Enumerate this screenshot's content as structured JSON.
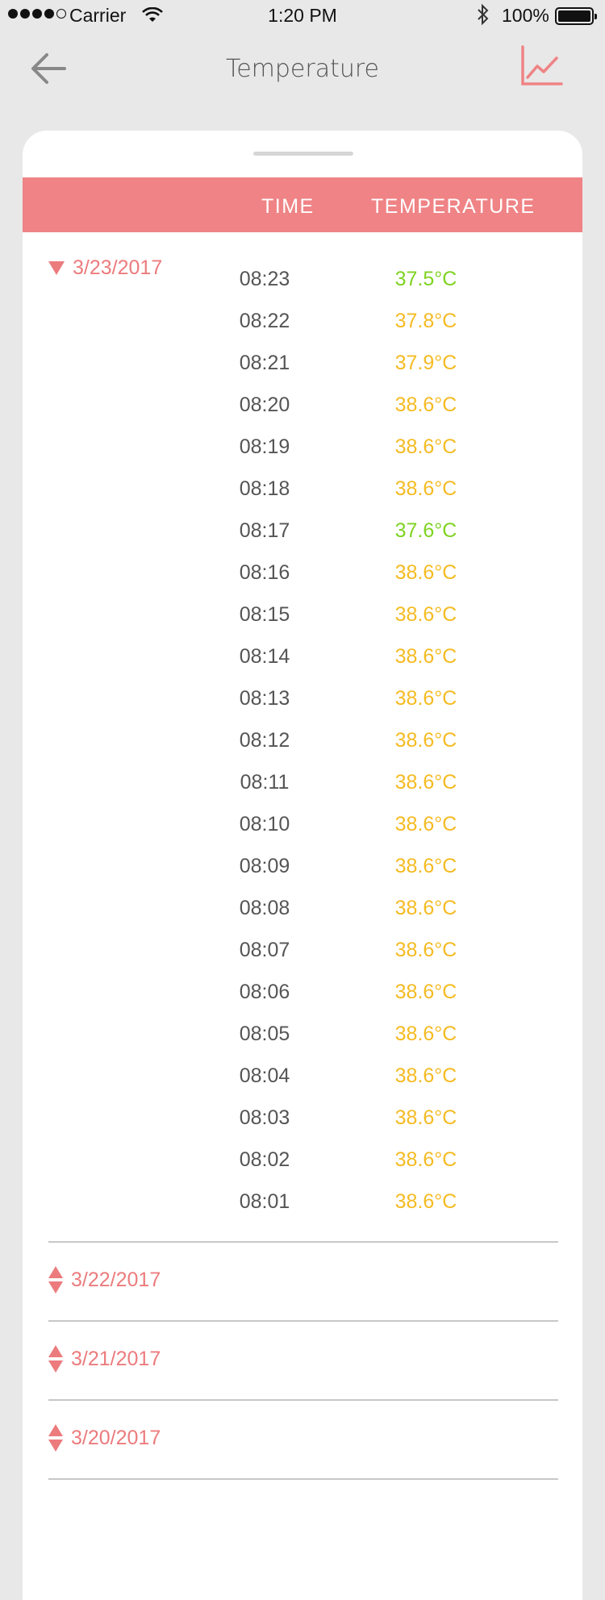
{
  "status_bar": {
    "carrier": "Carrier",
    "time": "1:20 PM",
    "battery": "100%"
  },
  "nav": {
    "title": "Temperature",
    "back_icon": "arrow-left-icon",
    "chart_icon": "line-chart-icon",
    "accent_color": "#ef8385"
  },
  "table": {
    "header_time": "TIME",
    "header_temperature": "TEMPERATURE"
  },
  "groups": [
    {
      "date": "3/23/2017",
      "expanded": true,
      "readings": [
        {
          "time": "08:23",
          "temp": "37.5°C",
          "status": "ok"
        },
        {
          "time": "08:22",
          "temp": "37.8°C",
          "status": "warn"
        },
        {
          "time": "08:21",
          "temp": "37.9°C",
          "status": "warn"
        },
        {
          "time": "08:20",
          "temp": "38.6°C",
          "status": "warn"
        },
        {
          "time": "08:19",
          "temp": "38.6°C",
          "status": "warn"
        },
        {
          "time": "08:18",
          "temp": "38.6°C",
          "status": "warn"
        },
        {
          "time": "08:17",
          "temp": "37.6°C",
          "status": "ok"
        },
        {
          "time": "08:16",
          "temp": "38.6°C",
          "status": "warn"
        },
        {
          "time": "08:15",
          "temp": "38.6°C",
          "status": "warn"
        },
        {
          "time": "08:14",
          "temp": "38.6°C",
          "status": "warn"
        },
        {
          "time": "08:13",
          "temp": "38.6°C",
          "status": "warn"
        },
        {
          "time": "08:12",
          "temp": "38.6°C",
          "status": "warn"
        },
        {
          "time": "08:11",
          "temp": "38.6°C",
          "status": "warn"
        },
        {
          "time": "08:10",
          "temp": "38.6°C",
          "status": "warn"
        },
        {
          "time": "08:09",
          "temp": "38.6°C",
          "status": "warn"
        },
        {
          "time": "08:08",
          "temp": "38.6°C",
          "status": "warn"
        },
        {
          "time": "08:07",
          "temp": "38.6°C",
          "status": "warn"
        },
        {
          "time": "08:06",
          "temp": "38.6°C",
          "status": "warn"
        },
        {
          "time": "08:05",
          "temp": "38.6°C",
          "status": "warn"
        },
        {
          "time": "08:04",
          "temp": "38.6°C",
          "status": "warn"
        },
        {
          "time": "08:03",
          "temp": "38.6°C",
          "status": "warn"
        },
        {
          "time": "08:02",
          "temp": "38.6°C",
          "status": "warn"
        },
        {
          "time": "08:01",
          "temp": "38.6°C",
          "status": "warn"
        }
      ]
    },
    {
      "date": "3/22/2017",
      "expanded": false
    },
    {
      "date": "3/21/2017",
      "expanded": false
    },
    {
      "date": "3/20/2017",
      "expanded": false
    }
  ],
  "colors": {
    "ok": "#7ed321",
    "warn": "#f5bb22",
    "accent": "#ef8385"
  }
}
